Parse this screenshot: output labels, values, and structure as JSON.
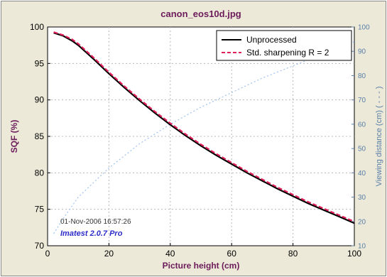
{
  "chart_data": {
    "type": "line",
    "title": "canon_eos10d.jpg",
    "xlabel": "Picture height (cm)",
    "ylabel": "SQF (%)",
    "y2label": "Viewing distance (cm) ( - - - )",
    "xlim": [
      0,
      100
    ],
    "ylim": [
      70,
      100
    ],
    "y2lim": [
      10,
      100
    ],
    "x_ticks": [
      0,
      20,
      40,
      60,
      80,
      100
    ],
    "y_ticks": [
      70,
      75,
      80,
      85,
      90,
      95,
      100
    ],
    "y2_ticks": [
      10,
      20,
      30,
      40,
      50,
      60,
      70,
      80,
      90,
      100
    ],
    "grid": true,
    "legend_position": "top-right",
    "series": [
      {
        "name": "Unprocessed",
        "axis": "left",
        "color": "#000000",
        "style": "solid",
        "x": [
          2,
          5,
          8,
          10,
          15,
          20,
          25,
          30,
          35,
          40,
          45,
          50,
          55,
          60,
          65,
          70,
          75,
          80,
          85,
          90,
          95,
          100
        ],
        "y": [
          99.2,
          98.8,
          98.1,
          97.5,
          95.6,
          93.6,
          91.7,
          89.9,
          88.2,
          86.6,
          85.1,
          83.7,
          82.4,
          81.2,
          80.0,
          78.9,
          77.8,
          76.8,
          75.8,
          74.9,
          74.0,
          73.1
        ]
      },
      {
        "name": "Std. sharpening R = 2",
        "axis": "left",
        "color": "#e0205a",
        "style": "dashed",
        "x": [
          2,
          5,
          8,
          10,
          15,
          20,
          25,
          30,
          35,
          40,
          45,
          50,
          55,
          60,
          65,
          70,
          75,
          80,
          85,
          90,
          95,
          100
        ],
        "y": [
          99.3,
          98.9,
          98.3,
          97.7,
          95.8,
          93.8,
          91.9,
          90.1,
          88.4,
          86.8,
          85.3,
          83.9,
          82.6,
          81.4,
          80.2,
          79.1,
          78.0,
          77.0,
          76.0,
          75.1,
          74.2,
          73.3
        ]
      },
      {
        "axis": "right",
        "color": "#9fc2ee",
        "style": "dotted",
        "x": [
          2,
          5,
          10,
          15,
          20,
          25,
          30,
          35,
          40,
          45,
          50,
          55,
          60,
          65,
          70,
          75,
          80,
          85,
          90,
          95,
          100
        ],
        "y": [
          15,
          21,
          30,
          36,
          42,
          47,
          52,
          56,
          60,
          63.5,
          67,
          70,
          73,
          76,
          79,
          81.5,
          84,
          86.5,
          89,
          91.5,
          94
        ]
      }
    ]
  },
  "stamp": {
    "date": "01-Nov-2006 16:57:26",
    "app": "Imatest 2.0.7 Pro"
  }
}
